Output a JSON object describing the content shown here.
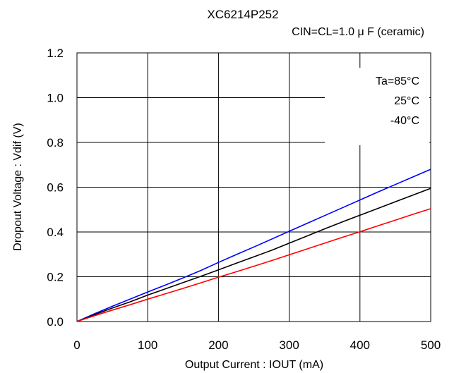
{
  "chart_data": {
    "type": "line",
    "title": "XC6214P252",
    "subtitle": "CIN=CL=1.0 μ F  (ceramic)",
    "xlabel": "Output Current : IOUT (mA)",
    "ylabel": "Dropout Voltage : Vdif (V)",
    "xlim": [
      0,
      500
    ],
    "ylim": [
      0,
      1.2
    ],
    "xticks": [
      0,
      100,
      200,
      300,
      400,
      500
    ],
    "yticks": [
      0.0,
      0.2,
      0.4,
      0.6,
      0.8,
      1.0,
      1.2
    ],
    "xtick_labels": [
      "0",
      "100",
      "200",
      "300",
      "400",
      "500"
    ],
    "ytick_labels": [
      "0.0",
      "0.2",
      "0.4",
      "0.6",
      "0.8",
      "1.0",
      "1.2"
    ],
    "grid": true,
    "legend": {
      "placement": "top-right",
      "entries": [
        "Ta=85°C",
        "25°C",
        "-40°C"
      ]
    },
    "series": [
      {
        "name": "Ta=85°C",
        "color": "#0000ff",
        "x": [
          0,
          25,
          50,
          75,
          100,
          125,
          150,
          175,
          200,
          225,
          250,
          275,
          300,
          325,
          350,
          375,
          400,
          425,
          450,
          475,
          500
        ],
        "y": [
          0,
          0.035,
          0.068,
          0.1,
          0.132,
          0.163,
          0.195,
          0.228,
          0.264,
          0.299,
          0.333,
          0.368,
          0.403,
          0.438,
          0.473,
          0.508,
          0.543,
          0.578,
          0.612,
          0.646,
          0.68
        ]
      },
      {
        "name": "25°C",
        "color": "#000000",
        "x": [
          0,
          25,
          50,
          75,
          100,
          125,
          150,
          175,
          200,
          225,
          250,
          275,
          300,
          325,
          350,
          375,
          400,
          425,
          450,
          475,
          500
        ],
        "y": [
          0,
          0.031,
          0.06,
          0.088,
          0.118,
          0.146,
          0.174,
          0.202,
          0.231,
          0.26,
          0.289,
          0.318,
          0.35,
          0.382,
          0.414,
          0.445,
          0.475,
          0.505,
          0.535,
          0.565,
          0.595
        ]
      },
      {
        "name": "-40°C",
        "color": "#ff0000",
        "x": [
          0,
          25,
          50,
          75,
          100,
          125,
          150,
          175,
          200,
          225,
          250,
          275,
          300,
          325,
          350,
          375,
          400,
          425,
          450,
          475,
          500
        ],
        "y": [
          0,
          0.026,
          0.051,
          0.075,
          0.1,
          0.124,
          0.148,
          0.173,
          0.198,
          0.222,
          0.247,
          0.272,
          0.298,
          0.324,
          0.35,
          0.376,
          0.401,
          0.427,
          0.453,
          0.479,
          0.504
        ]
      }
    ]
  }
}
